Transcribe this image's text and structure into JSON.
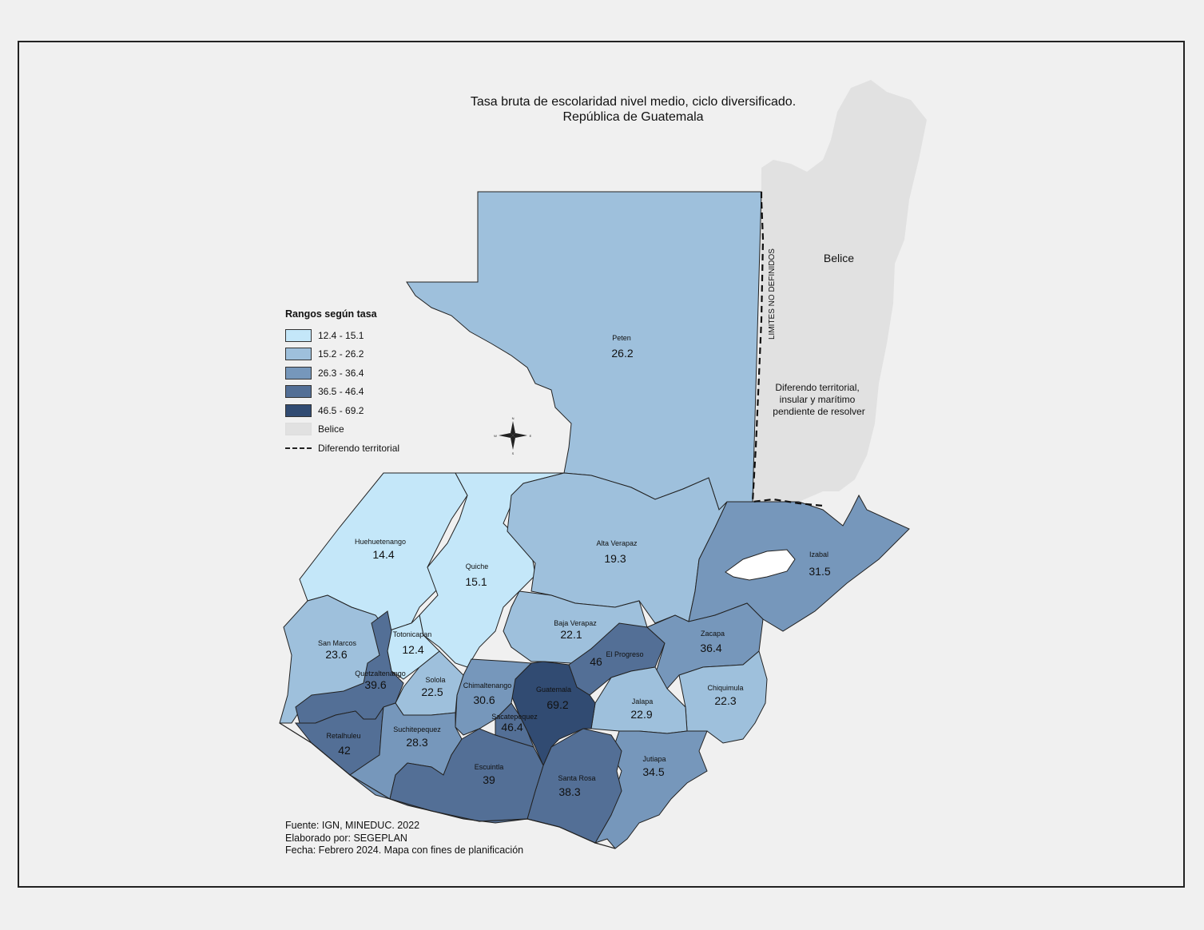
{
  "title": {
    "line1": "Tasa bruta de escolaridad nivel medio, ciclo diversificado.",
    "line2": "República de Guatemala"
  },
  "legend": {
    "title": "Rangos según tasa",
    "items": [
      {
        "label": "12.4 - 15.1",
        "color": "#c4e7f9"
      },
      {
        "label": "15.2 - 26.2",
        "color": "#9ec0dc"
      },
      {
        "label": "26.3 - 36.4",
        "color": "#7697bb"
      },
      {
        "label": "36.5 - 46.4",
        "color": "#536f96"
      },
      {
        "label": "46.5 - 69.2",
        "color": "#314b72"
      },
      {
        "label": "Belice",
        "color": "#e1e1e1"
      },
      {
        "label": "Diferendo territorial",
        "style": "dashed-line"
      }
    ]
  },
  "belize": {
    "name": "Belice",
    "border_label": "LIMITES NO DEFINIDOS",
    "dispute_note": [
      "Diferendo territorial,",
      "insular y marítimo",
      "pendiente de resolver"
    ]
  },
  "departments": [
    {
      "name": "Peten",
      "value": "26.2"
    },
    {
      "name": "Huehuetenango",
      "value": "14.4"
    },
    {
      "name": "Quiche",
      "value": "15.1"
    },
    {
      "name": "Alta Verapaz",
      "value": "19.3"
    },
    {
      "name": "Izabal",
      "value": "31.5"
    },
    {
      "name": "Baja Verapaz",
      "value": "22.1"
    },
    {
      "name": "El Progreso",
      "value": "46"
    },
    {
      "name": "Zacapa",
      "value": "36.4"
    },
    {
      "name": "San Marcos",
      "value": "23.6"
    },
    {
      "name": "Totonicapan",
      "value": "12.4"
    },
    {
      "name": "Quetzaltenango",
      "value": "39.6"
    },
    {
      "name": "Solola",
      "value": "22.5"
    },
    {
      "name": "Chimaltenango",
      "value": "30.6"
    },
    {
      "name": "Guatemala",
      "value": "69.2"
    },
    {
      "name": "Jalapa",
      "value": "22.9"
    },
    {
      "name": "Chiquimula",
      "value": "22.3"
    },
    {
      "name": "Sacatepequez",
      "value": "46.4"
    },
    {
      "name": "Retalhuleu",
      "value": "42"
    },
    {
      "name": "Suchitepequez",
      "value": "28.3"
    },
    {
      "name": "Escuintla",
      "value": "39"
    },
    {
      "name": "Santa Rosa",
      "value": "38.3"
    },
    {
      "name": "Jutiapa",
      "value": "34.5"
    }
  ],
  "credits": {
    "source": "Fuente: IGN, MINEDUC. 2022",
    "author": "Elaborado por: SEGEPLAN",
    "date": "Fecha: Febrero 2024. Mapa con fines de planificación"
  }
}
